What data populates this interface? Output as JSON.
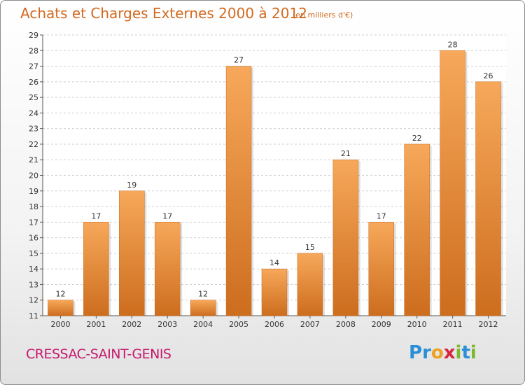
{
  "title": "Achats et Charges Externes 2000 à 2012",
  "subtitle": "(en milliers d'€)",
  "commune": "CRESSAC-SAINT-GENIS",
  "logo": {
    "letters": [
      {
        "char": "P",
        "color": "#2a8fd6"
      },
      {
        "char": "r",
        "color": "#2a8fd6"
      },
      {
        "char": "o",
        "color": "#f0a020"
      },
      {
        "char": "x",
        "color": "#d8263e"
      },
      {
        "char": "i",
        "color": "#7cb82f"
      },
      {
        "char": "t",
        "color": "#2a8fd6"
      },
      {
        "char": "i",
        "color": "#7cb82f"
      }
    ]
  },
  "colors": {
    "title": "#d2691e",
    "bar_top": "#f7a85a",
    "bar_bottom": "#cd6d1e",
    "commune": "#c6186e"
  },
  "chart_data": {
    "type": "bar",
    "title": "Achats et Charges Externes 2000 à 2012",
    "subtitle": "(en milliers d'€)",
    "categories": [
      "2000",
      "2001",
      "2002",
      "2003",
      "2004",
      "2005",
      "2006",
      "2007",
      "2008",
      "2009",
      "2010",
      "2011",
      "2012"
    ],
    "values": [
      12,
      17,
      19,
      17,
      12,
      27,
      14,
      15,
      21,
      17,
      22,
      28,
      26
    ],
    "ylim": [
      11,
      29
    ],
    "yticks": [
      11,
      12,
      13,
      14,
      15,
      16,
      17,
      18,
      19,
      20,
      21,
      22,
      23,
      24,
      25,
      26,
      27,
      28,
      29
    ],
    "grid": true,
    "data_labels": true
  }
}
